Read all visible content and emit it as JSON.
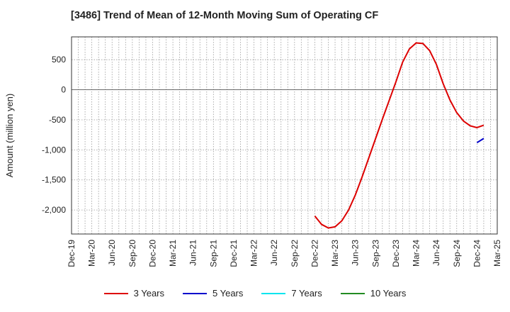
{
  "chart_data": {
    "type": "line",
    "title": "[3486]  Trend of Mean of 12-Month Moving Sum of Operating CF",
    "xlabel": "",
    "ylabel": "Amount (million yen)",
    "ylim": [
      -2400,
      880
    ],
    "yticks": [
      500,
      0,
      -500,
      -1000,
      -1500,
      -2000
    ],
    "ytick_labels": [
      "500",
      "0",
      "-500",
      "-1,000",
      "-1,500",
      "-2,000"
    ],
    "x_ticks": [
      "Dec-19",
      "Mar-20",
      "Jun-20",
      "Sep-20",
      "Dec-20",
      "Mar-21",
      "Jun-21",
      "Sep-21",
      "Dec-21",
      "Mar-22",
      "Jun-22",
      "Sep-22",
      "Dec-22",
      "Mar-23",
      "Jun-23",
      "Sep-23",
      "Dec-23",
      "Mar-24",
      "Jun-24",
      "Sep-24",
      "Dec-24",
      "Mar-25"
    ],
    "grid": true,
    "legend_position": "bottom",
    "series": [
      {
        "name": "3 Years",
        "color": "#dd0000",
        "start_month_index": 36,
        "values": [
          -2100,
          -2240,
          -2300,
          -2280,
          -2180,
          -2000,
          -1750,
          -1450,
          -1130,
          -810,
          -490,
          -180,
          130,
          460,
          680,
          780,
          770,
          650,
          420,
          100,
          -170,
          -380,
          -520,
          -600,
          -630,
          -590
        ]
      },
      {
        "name": "5 Years",
        "color": "#0000cc",
        "start_month_index": 60,
        "values": [
          -880,
          -810
        ]
      },
      {
        "name": "7 Years",
        "color": "#00e5ee",
        "start_month_index": 0,
        "values": []
      },
      {
        "name": "10 Years",
        "color": "#228b22",
        "start_month_index": 0,
        "values": []
      }
    ]
  }
}
